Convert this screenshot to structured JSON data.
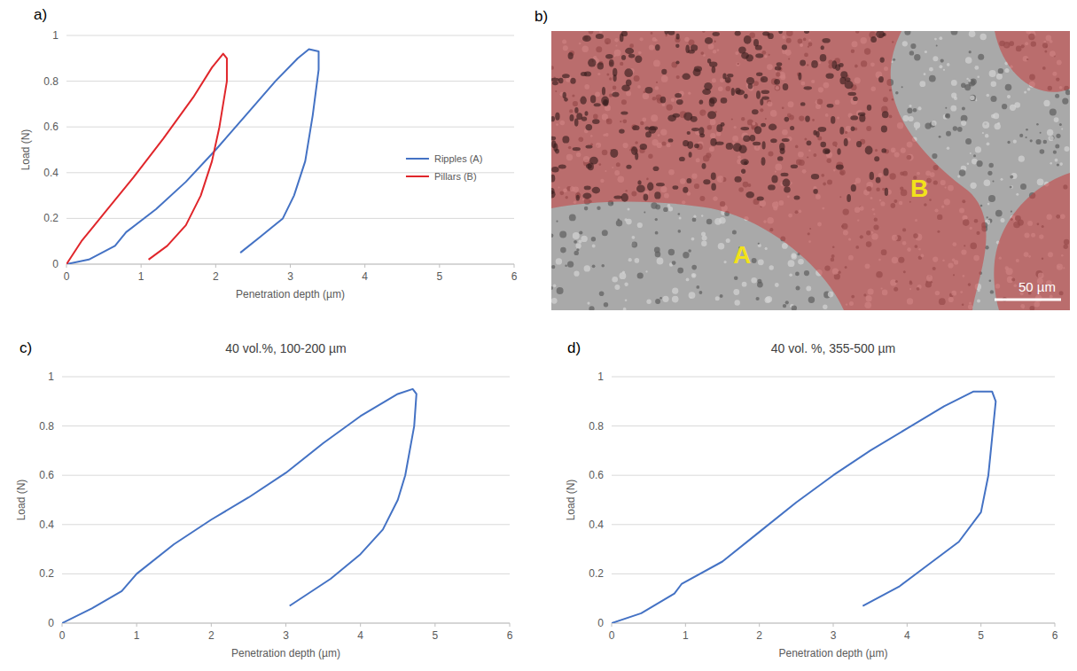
{
  "chart_data": [
    {
      "type": "line",
      "x_label": "Penetration depth (µm)",
      "y_label": "Load (N)",
      "xlim": [
        0,
        6
      ],
      "xticks": [
        0,
        1,
        2,
        3,
        4,
        5,
        6
      ],
      "ylim": [
        0,
        1
      ],
      "yticks": [
        0,
        0.2,
        0.4,
        0.6,
        0.8,
        1
      ],
      "grid": true,
      "legend": "right",
      "series": [
        {
          "name": "Ripples (A)",
          "color": "#4472c4",
          "x": [
            0,
            0.3,
            0.65,
            0.8,
            1.2,
            1.6,
            2.0,
            2.4,
            2.8,
            3.1,
            3.25,
            3.38,
            3.38,
            3.3,
            3.2,
            3.05,
            2.9,
            2.6,
            2.33
          ],
          "values": [
            0,
            0.02,
            0.08,
            0.14,
            0.24,
            0.36,
            0.5,
            0.65,
            0.8,
            0.9,
            0.94,
            0.93,
            0.85,
            0.65,
            0.45,
            0.3,
            0.2,
            0.12,
            0.05
          ]
        },
        {
          "name": "Pillars (B)",
          "color": "#e0262b",
          "x": [
            0,
            0.2,
            0.5,
            0.9,
            1.3,
            1.7,
            1.95,
            2.1,
            2.15,
            2.15,
            2.05,
            1.95,
            1.8,
            1.6,
            1.35,
            1.1
          ],
          "values": [
            0,
            0.1,
            0.22,
            0.38,
            0.55,
            0.73,
            0.86,
            0.92,
            0.9,
            0.8,
            0.6,
            0.45,
            0.3,
            0.17,
            0.08,
            0.02
          ]
        }
      ]
    },
    {
      "type": "line",
      "title": "40 vol.%, 100-200 µm",
      "x_label": "Penetration depth (µm)",
      "y_label": "Load (N)",
      "xlim": [
        0,
        6
      ],
      "xticks": [
        0,
        1,
        2,
        3,
        4,
        5,
        6
      ],
      "ylim": [
        0,
        1
      ],
      "yticks": [
        0,
        0.2,
        0.4,
        0.6,
        0.8,
        1
      ],
      "grid": true,
      "series": [
        {
          "color": "#4472c4",
          "x": [
            0,
            0.4,
            0.8,
            1.0,
            1.5,
            2.0,
            2.5,
            3.0,
            3.5,
            4.0,
            4.5,
            4.7,
            4.75,
            4.72,
            4.6,
            4.5,
            4.3,
            4.0,
            3.6,
            3.05
          ],
          "values": [
            0,
            0.06,
            0.13,
            0.2,
            0.32,
            0.42,
            0.51,
            0.61,
            0.73,
            0.84,
            0.93,
            0.95,
            0.93,
            0.8,
            0.6,
            0.5,
            0.38,
            0.28,
            0.18,
            0.07
          ]
        }
      ]
    },
    {
      "type": "line",
      "title": "40 vol. %, 355-500 µm",
      "x_label": "Penetration depth (µm)",
      "y_label": "Load (N)",
      "xlim": [
        0,
        6
      ],
      "xticks": [
        0,
        1,
        2,
        3,
        4,
        5,
        6
      ],
      "ylim": [
        0,
        1
      ],
      "yticks": [
        0,
        0.2,
        0.4,
        0.6,
        0.8,
        1
      ],
      "grid": true,
      "series": [
        {
          "color": "#4472c4",
          "x": [
            0,
            0.4,
            0.85,
            0.95,
            1.5,
            2.0,
            2.5,
            3.0,
            3.5,
            4.0,
            4.5,
            4.9,
            5.15,
            5.2,
            5.15,
            5.1,
            5.0,
            4.7,
            4.3,
            3.9,
            3.4
          ],
          "values": [
            0,
            0.04,
            0.12,
            0.16,
            0.25,
            0.37,
            0.49,
            0.6,
            0.7,
            0.79,
            0.88,
            0.94,
            0.94,
            0.9,
            0.75,
            0.6,
            0.45,
            0.33,
            0.24,
            0.15,
            0.07
          ]
        }
      ]
    }
  ],
  "panel_letters": [
    "a)",
    "b)",
    "c)",
    "d)"
  ],
  "micrograph": {
    "labels": [
      "A",
      "B"
    ],
    "scale_bar": "50 µm"
  }
}
